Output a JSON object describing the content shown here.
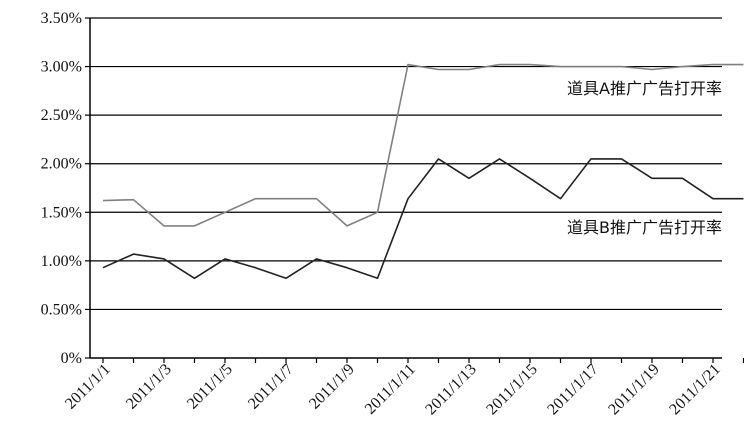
{
  "chart_data": {
    "type": "line",
    "title": "",
    "xlabel": "",
    "ylabel": "",
    "ylim": [
      0,
      3.5
    ],
    "y_ticks": [
      "0%",
      "0.50%",
      "1.00%",
      "1.50%",
      "2.00%",
      "2.50%",
      "3.00%",
      "3.50%"
    ],
    "x_tick_labels": [
      "2011/1/1",
      "2011/1/3",
      "2011/1/5",
      "2011/1/7",
      "2011/1/9",
      "2011/1/11",
      "2011/1/13",
      "2011/1/15",
      "2011/1/17",
      "2011/1/19",
      "2011/1/21"
    ],
    "grid": "horizontal",
    "legend": "inline labels beside lines",
    "x": [
      "2011/1/1",
      "2011/1/2",
      "2011/1/3",
      "2011/1/4",
      "2011/1/5",
      "2011/1/6",
      "2011/1/7",
      "2011/1/8",
      "2011/1/9",
      "2011/1/10",
      "2011/1/11",
      "2011/1/12",
      "2011/1/13",
      "2011/1/14",
      "2011/1/15",
      "2011/1/16",
      "2011/1/17",
      "2011/1/18",
      "2011/1/19",
      "2011/1/20",
      "2011/1/21",
      "2011/1/22"
    ],
    "series": [
      {
        "name": "道具A推广广告打开率",
        "color": "#808080",
        "values": [
          1.62,
          1.63,
          1.36,
          1.36,
          1.5,
          1.64,
          1.64,
          1.64,
          1.36,
          1.5,
          3.02,
          2.97,
          2.97,
          3.02,
          3.02,
          3.0,
          3.0,
          3.0,
          2.97,
          3.0,
          3.02,
          3.02
        ]
      },
      {
        "name": "道具B推广广告打开率",
        "color": "#222222",
        "values": [
          0.93,
          1.07,
          1.02,
          0.82,
          1.02,
          0.93,
          0.82,
          1.02,
          0.93,
          0.82,
          1.64,
          2.05,
          1.85,
          2.05,
          1.85,
          1.64,
          2.05,
          2.05,
          1.85,
          1.85,
          1.64,
          1.64
        ]
      }
    ]
  }
}
